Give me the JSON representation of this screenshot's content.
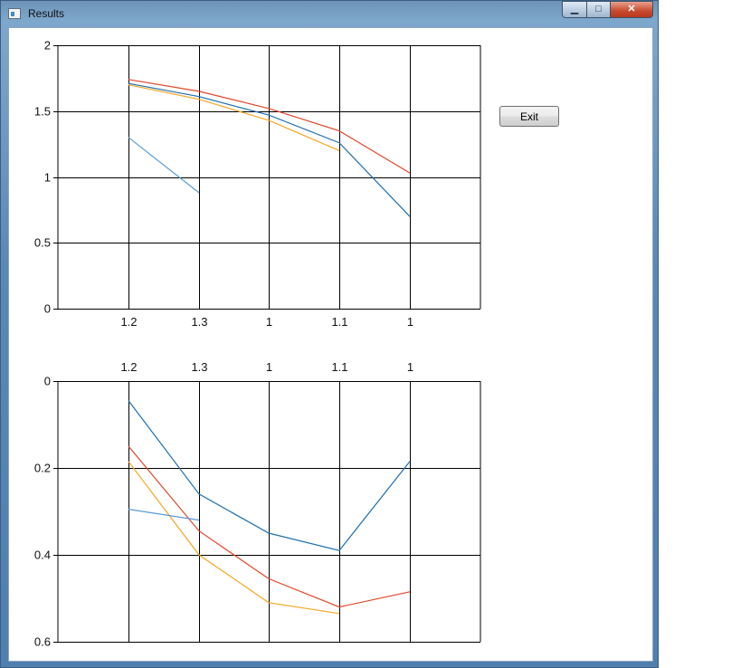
{
  "window": {
    "title": "Results",
    "icon": "app-window-icon"
  },
  "controls": {
    "minimize": "minimize-icon",
    "maximize": "maximize-icon",
    "close": "close-icon",
    "exit_label": "Exit"
  },
  "colors": {
    "blue": "#1f6fb0",
    "red": "#e0462a",
    "orange": "#f5a623",
    "light_blue": "#5b9bd5",
    "grid": "#000000"
  },
  "chart_data": [
    {
      "type": "line",
      "title": "",
      "categories": [
        "1.2",
        "1.3",
        "1",
        "1.1",
        "1"
      ],
      "ylim": [
        0,
        2
      ],
      "yticks": [
        "0",
        "0.5",
        "1",
        "1.5",
        "2"
      ],
      "ytick_values": [
        0,
        0.5,
        1,
        1.5,
        2
      ],
      "xaxis_position": "bottom",
      "y_inverted": false,
      "grid": true,
      "series": [
        {
          "color": "#e0462a",
          "values": [
            1.74,
            1.65,
            1.52,
            1.35,
            1.03
          ]
        },
        {
          "color": "#1f6fb0",
          "values": [
            1.71,
            1.61,
            1.47,
            1.26,
            0.7
          ]
        },
        {
          "color": "#f5a623",
          "values": [
            1.7,
            1.59,
            1.43,
            1.2,
            null
          ]
        },
        {
          "color": "#5b9bd5",
          "values": [
            1.3,
            0.88,
            null,
            null,
            null
          ]
        }
      ]
    },
    {
      "type": "line",
      "title": "",
      "categories": [
        "1.2",
        "1.3",
        "1",
        "1.1",
        "1"
      ],
      "ylim": [
        0,
        0.6
      ],
      "yticks": [
        "0",
        "0.2",
        "0.4",
        "0.6"
      ],
      "ytick_values": [
        0,
        0.2,
        0.4,
        0.6
      ],
      "xaxis_position": "top",
      "y_inverted": true,
      "grid": true,
      "series": [
        {
          "color": "#1f6fb0",
          "values": [
            0.045,
            0.26,
            0.35,
            0.39,
            0.185
          ]
        },
        {
          "color": "#e0462a",
          "values": [
            0.15,
            0.345,
            0.455,
            0.52,
            0.485
          ]
        },
        {
          "color": "#f5a623",
          "values": [
            0.185,
            0.4,
            0.51,
            0.535,
            null
          ]
        },
        {
          "color": "#5b9bd5",
          "values": [
            0.295,
            0.32,
            null,
            null,
            null
          ]
        }
      ]
    }
  ]
}
